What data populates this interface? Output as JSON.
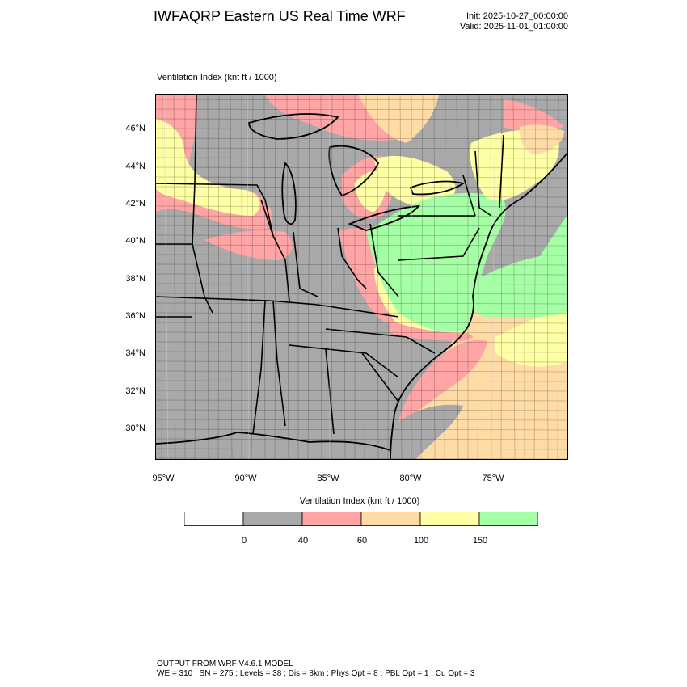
{
  "header": {
    "title": "IWFAQRP Eastern US Real Time WRF",
    "init": "Init: 2025-10-27_00:00:00",
    "valid": "Valid: 2025-11-01_01:00:00"
  },
  "field_label": "Ventilation Index   (knt ft / 1000)",
  "map": {
    "lat_labels": [
      "46°N",
      "44°N",
      "42°N",
      "40°N",
      "38°N",
      "36°N",
      "34°N",
      "32°N",
      "30°N"
    ],
    "lon_labels": [
      "95°W",
      "90°W",
      "85°W",
      "80°W",
      "75°W"
    ],
    "land_color": "#a9a9a9",
    "border_color": "#000000"
  },
  "colorbar": {
    "title": "Ventilation Index  (knt ft / 1000)",
    "colors": [
      "#ffffff",
      "#a9a9a9",
      "#ffa5a5",
      "#ffdca5",
      "#ffffa5",
      "#a5ffa5"
    ],
    "labels": [
      "0",
      "40",
      "60",
      "100",
      "150"
    ]
  },
  "footer": {
    "line1": "OUTPUT FROM WRF V4.6.1 MODEL",
    "line2": "WE = 310 ; SN = 275 ; Levels = 38 ; Dis = 8km ; Phys Opt = 8 ; PBL Opt = 1 ; Cu Opt = 3"
  }
}
